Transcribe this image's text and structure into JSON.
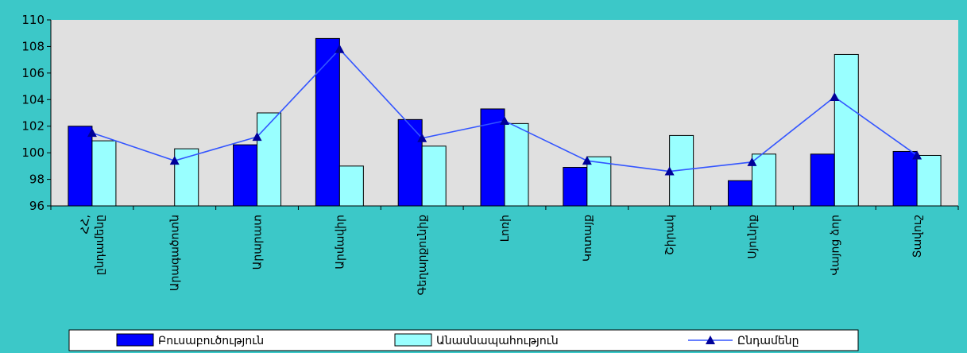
{
  "chart_data": {
    "type": "bar",
    "title": "",
    "xlabel": "",
    "ylabel": "",
    "ylim": [
      96,
      110
    ],
    "yticks": [
      96,
      98,
      100,
      102,
      104,
      106,
      108,
      110
    ],
    "grid": false,
    "legend": "bottom",
    "categories": [
      "ՀՀ, ընդամենը",
      "Արագածոտն",
      "Արարատ",
      "Արմավիր",
      "Գեղարքունիք",
      "Լոռի",
      "Կոտայք",
      "Շիրակ",
      "Սյունիք",
      "Վայոց ձոր",
      "Տավուշ"
    ],
    "series": [
      {
        "name": "Բուսաբուծություն",
        "kind": "bar",
        "color": "#0000ff",
        "values": [
          102.0,
          null,
          100.6,
          108.6,
          102.5,
          103.3,
          98.9,
          null,
          97.9,
          99.9,
          100.1
        ]
      },
      {
        "name": "Անասնապահություն",
        "kind": "bar",
        "color": "#99ffff",
        "values": [
          100.9,
          100.3,
          103.0,
          99.0,
          100.5,
          102.2,
          99.7,
          101.3,
          99.9,
          107.4,
          99.8
        ]
      },
      {
        "name": "Ընդամենը",
        "kind": "line",
        "color": "#3355ff",
        "marker": "triangle",
        "marker_color": "#000099",
        "values": [
          101.5,
          99.4,
          101.2,
          107.8,
          101.1,
          102.4,
          99.4,
          98.6,
          99.3,
          104.2,
          99.8
        ]
      }
    ]
  }
}
